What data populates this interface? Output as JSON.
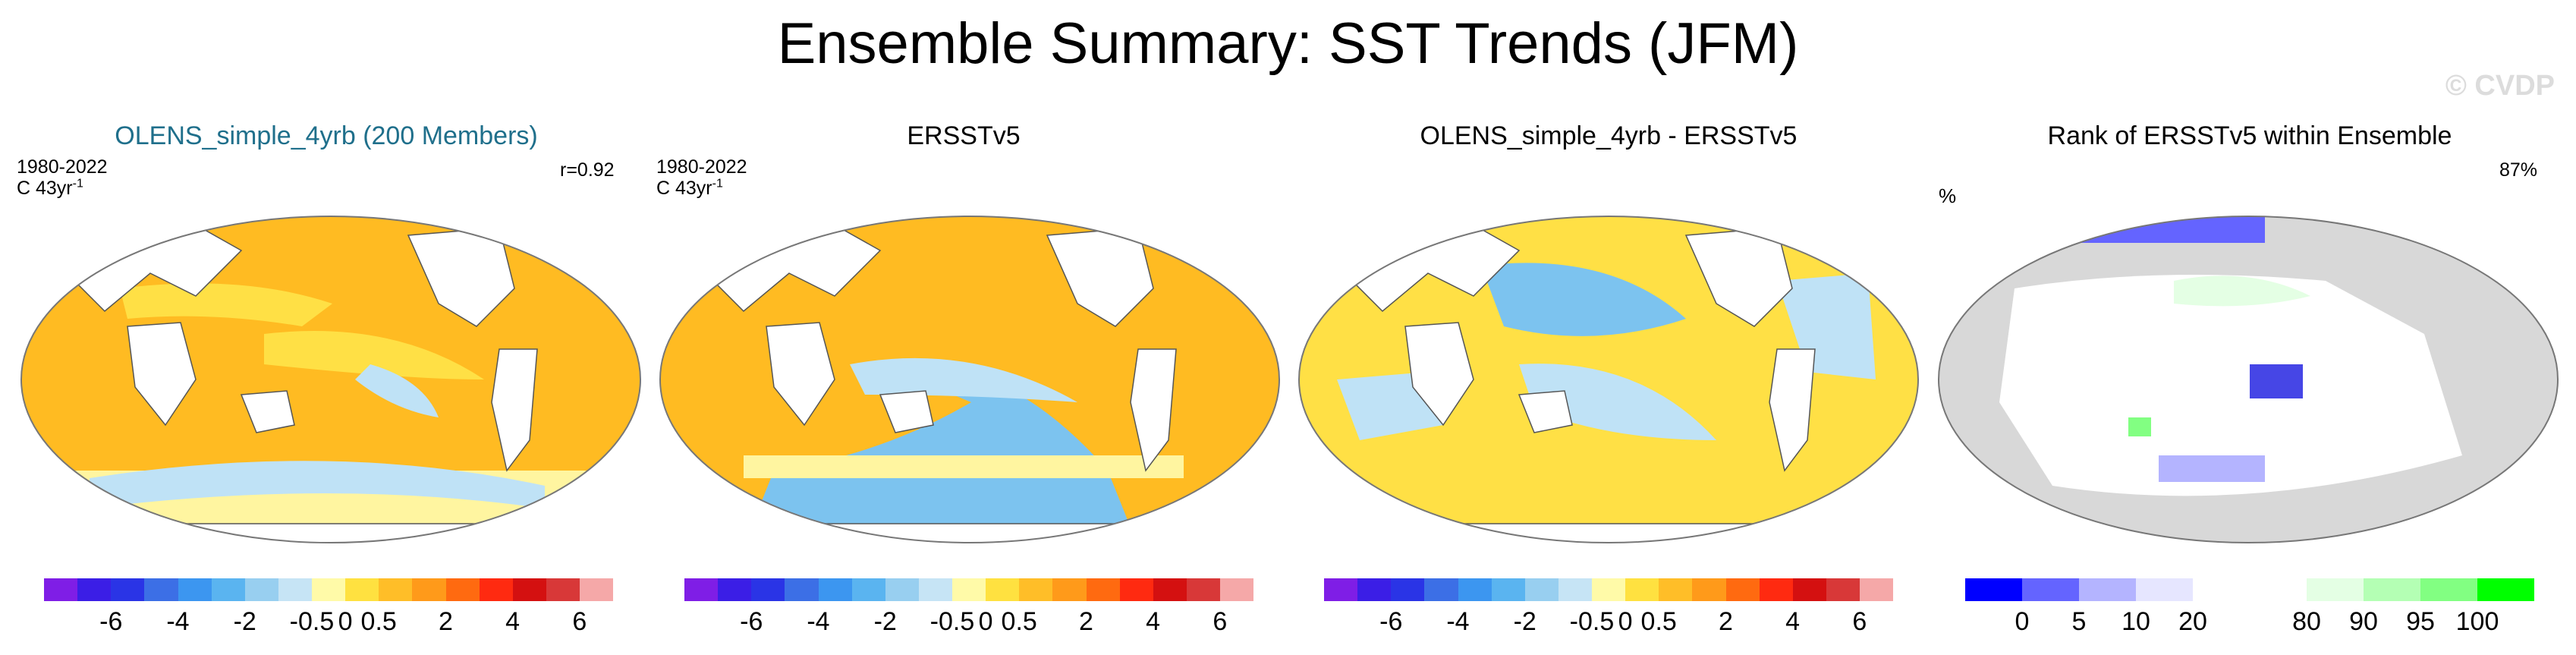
{
  "title": "Ensemble Summary: SST Trends (JFM)",
  "watermark": "© CVDP",
  "panels": [
    {
      "title": "OLENS_simple_4yrb (200 Members)",
      "period": "1980-2022",
      "unit_main": "C 43yr",
      "unit_sup": "-1",
      "stat": "r=0.92"
    },
    {
      "title": "ERSSTv5",
      "period": "1980-2022",
      "unit_main": "C 43yr",
      "unit_sup": "-1",
      "stat": ""
    },
    {
      "title": "OLENS_simple_4yrb - ERSSTv5",
      "period": "",
      "unit_main": "",
      "unit_sup": "",
      "stat": ""
    },
    {
      "title": "Rank of ERSSTv5 within Ensemble",
      "period": "%",
      "unit_main": "",
      "unit_sup": "",
      "stat": "87%"
    }
  ],
  "colors": {
    "trend_bar": [
      "#7f1ee6",
      "#3b1ee6",
      "#2a34e6",
      "#3c6fe6",
      "#3c96f0",
      "#5ab4f0",
      "#98cff0",
      "#c6e4f5",
      "#fffaa8",
      "#ffe140",
      "#ffbe28",
      "#ff9a1a",
      "#ff6a10",
      "#ff2a10",
      "#d41010",
      "#d83838",
      "#f5a8a8"
    ],
    "rank_bar": [
      "#0000ff",
      "#6464ff",
      "#b4b4ff",
      "#e6e6ff",
      "#ffffff",
      "#ffffff",
      "#e4ffe4",
      "#b4ffb4",
      "#82ff82",
      "#00ff00"
    ],
    "ocean_warm": "#ffbb22",
    "ocean_light": "#ffe045",
    "ocean_pale": "#fff5a0",
    "ocean_blue": "#bfe2f6",
    "ocean_blue2": "#7cc3ef",
    "land": "#ffffff",
    "land_gray": "#d8d8d8"
  },
  "chart_data": [
    {
      "type": "heatmap",
      "title": "OLENS_simple_4yrb (200 Members)",
      "projection": "Robinson",
      "stat": "r=0.92",
      "colorbar": {
        "ticks": [
          "-6",
          "-4",
          "-2",
          "-0.5",
          "0",
          "0.5",
          "2",
          "4",
          "6"
        ]
      }
    },
    {
      "type": "heatmap",
      "title": "ERSSTv5",
      "projection": "Robinson",
      "colorbar": {
        "ticks": [
          "-6",
          "-4",
          "-2",
          "-0.5",
          "0",
          "0.5",
          "2",
          "4",
          "6"
        ]
      }
    },
    {
      "type": "heatmap",
      "title": "OLENS_simple_4yrb - ERSSTv5",
      "projection": "Robinson",
      "colorbar": {
        "ticks": [
          "-6",
          "-4",
          "-2",
          "-0.5",
          "0",
          "0.5",
          "2",
          "4",
          "6"
        ]
      }
    },
    {
      "type": "heatmap",
      "title": "Rank of ERSSTv5 within Ensemble",
      "projection": "Robinson",
      "stat": "87%",
      "colorbar": {
        "ticks": [
          "0",
          "5",
          "10",
          "20",
          "80",
          "90",
          "95",
          "100"
        ]
      }
    }
  ]
}
